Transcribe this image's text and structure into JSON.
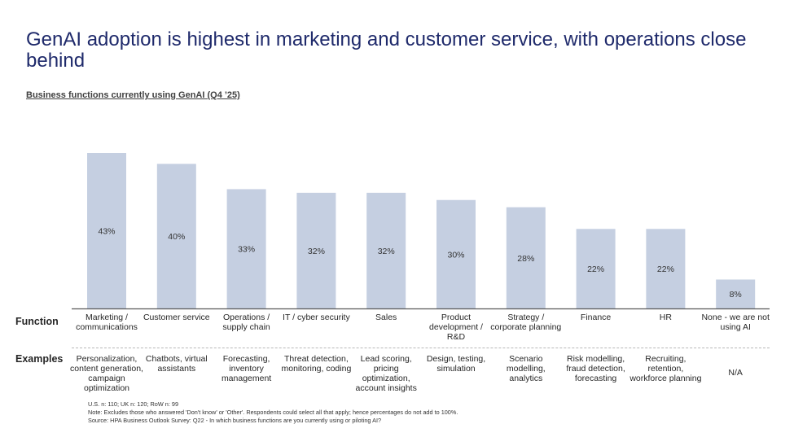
{
  "slide": {
    "title": "GenAI adoption is highest in marketing and customer service, with operations close behind",
    "subtitle": "Business functions currently using GenAI (Q4 ’25)",
    "row_labels": {
      "function": "Function",
      "examples": "Examples"
    },
    "examples": [
      "Personalization, content generation, campaign optimization",
      "Chatbots, virtual assistants",
      "Forecasting, inventory management",
      "Threat detection, monitoring, coding",
      "Lead scoring, pricing optimization, account insights",
      "Design, testing, simulation",
      "Scenario modelling, analytics",
      "Risk modelling, fraud detection, forecasting",
      "Recruiting, retention, workforce planning",
      "N/A"
    ],
    "notes": [
      "U.S. n: 110; UK n: 120; RoW n: 99",
      "Note: Excludes those who answered 'Don't know' or 'Other'. Respondents could select all that apply; hence percentages do not add to 100%.",
      "Source: HPA Business Outlook Survey: Q22 - In which business functions are you currently using or piloting AI?"
    ]
  },
  "chart_data": {
    "type": "bar",
    "title": "Business functions currently using GenAI (Q4 '25)",
    "xlabel": "Function",
    "ylabel": "",
    "ylim": [
      0,
      45
    ],
    "grid": false,
    "categories": [
      "Marketing / communications",
      "Customer service",
      "Operations / supply chain",
      "IT / cyber security",
      "Sales",
      "Product development / R&D",
      "Strategy / corporate planning",
      "Finance",
      "HR",
      "None - we are not using AI"
    ],
    "values": [
      43,
      40,
      33,
      32,
      32,
      30,
      28,
      22,
      22,
      8
    ],
    "data_labels": [
      "43%",
      "40%",
      "33%",
      "32%",
      "32%",
      "30%",
      "28%",
      "22%",
      "22%",
      "8%"
    ],
    "colors": {
      "bar": "#c5cfe1",
      "axis": "#595959",
      "label": "#333333"
    }
  }
}
